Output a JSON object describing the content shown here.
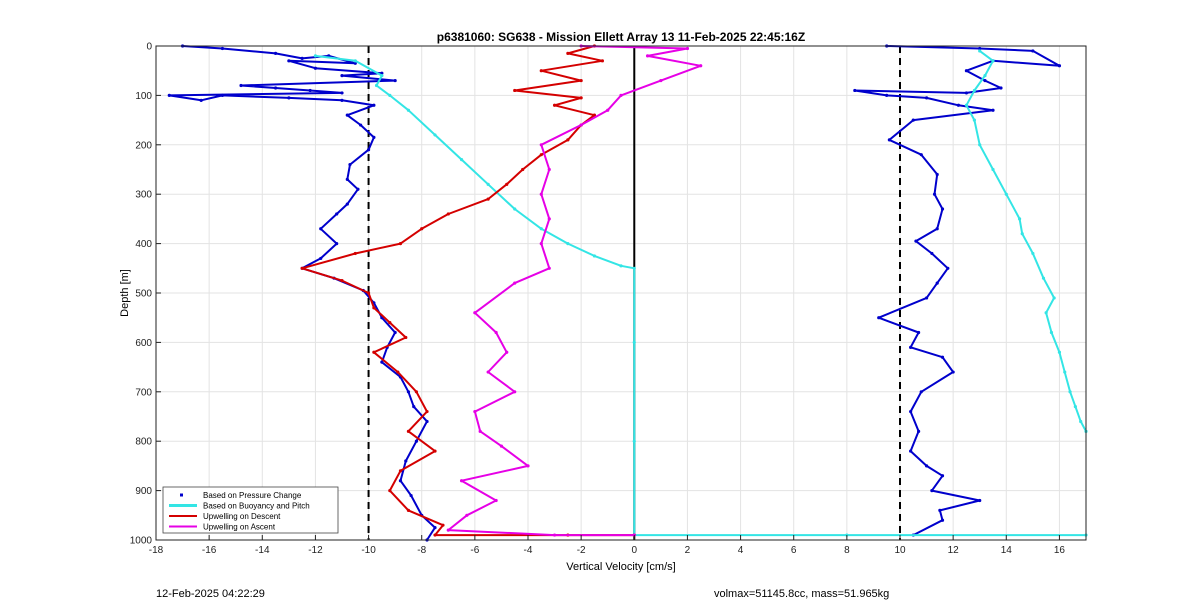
{
  "chart_data": {
    "type": "scatter",
    "title": "p6381060: SG638 - Mission Ellett Array 13 11-Feb-2025 22:45:16Z",
    "xlabel": "Vertical Velocity [cm/s]",
    "ylabel": "Depth [m]",
    "xlim": [
      -18,
      17
    ],
    "ylim": [
      0,
      1000
    ],
    "y_reversed": true,
    "grid": true,
    "xticks": [
      -18,
      -16,
      -14,
      -12,
      -10,
      -8,
      -6,
      -4,
      -2,
      0,
      2,
      4,
      6,
      8,
      10,
      12,
      14,
      16
    ],
    "yticks": [
      0,
      100,
      200,
      300,
      400,
      500,
      600,
      700,
      800,
      900,
      1000
    ],
    "reference_lines": [
      {
        "x": -10,
        "style": "dashed",
        "color": "#000000"
      },
      {
        "x": 0,
        "style": "solid",
        "color": "#000000"
      },
      {
        "x": 10,
        "style": "dashed",
        "color": "#000000"
      }
    ],
    "legend_position": "bottom-left",
    "legend": [
      {
        "label": "Based on Pressure Change",
        "color": "#0000cc",
        "kind": "dot"
      },
      {
        "label": "Based on Buoyancy and Pitch",
        "color": "#33e5e5",
        "kind": "thick-line"
      },
      {
        "label": "Upwelling on Descent",
        "color": "#d40000",
        "kind": "line"
      },
      {
        "label": "Upwelling on Ascent",
        "color": "#e600e6",
        "kind": "line"
      }
    ],
    "series": [
      {
        "name": "Based on Pressure Change (descent)",
        "color": "#0000cc",
        "points": [
          [
            -17,
            0
          ],
          [
            -15.5,
            5
          ],
          [
            -13.5,
            15
          ],
          [
            -12.5,
            25
          ],
          [
            -11.5,
            20
          ],
          [
            -10.5,
            35
          ],
          [
            -13,
            30
          ],
          [
            -12,
            45
          ],
          [
            -9.5,
            55
          ],
          [
            -11,
            60
          ],
          [
            -9,
            70
          ],
          [
            -14.8,
            80
          ],
          [
            -13.5,
            85
          ],
          [
            -12.2,
            90
          ],
          [
            -11,
            95
          ],
          [
            -17.5,
            100
          ],
          [
            -16.3,
            110
          ],
          [
            -15.5,
            100
          ],
          [
            -13,
            105
          ],
          [
            -11,
            110
          ],
          [
            -9.8,
            120
          ],
          [
            -10.8,
            140
          ],
          [
            -10.3,
            160
          ],
          [
            -9.8,
            185
          ],
          [
            -10.0,
            210
          ],
          [
            -10.7,
            240
          ],
          [
            -10.8,
            270
          ],
          [
            -10.4,
            290
          ],
          [
            -10.8,
            320
          ],
          [
            -11.2,
            340
          ],
          [
            -11.8,
            370
          ],
          [
            -11.2,
            400
          ],
          [
            -11.8,
            430
          ],
          [
            -12.5,
            450
          ],
          [
            -11.3,
            470
          ],
          [
            -10.2,
            495
          ],
          [
            -9.8,
            520
          ],
          [
            -9.5,
            550
          ],
          [
            -9.0,
            580
          ],
          [
            -9.3,
            610
          ],
          [
            -9.5,
            640
          ],
          [
            -8.8,
            670
          ],
          [
            -8.5,
            700
          ],
          [
            -8.3,
            730
          ],
          [
            -7.8,
            760
          ],
          [
            -8.2,
            800
          ],
          [
            -8.6,
            840
          ],
          [
            -8.8,
            880
          ],
          [
            -8.4,
            910
          ],
          [
            -8.0,
            950
          ],
          [
            -7.5,
            975
          ],
          [
            -7.8,
            1000
          ]
        ]
      },
      {
        "name": "Based on Pressure Change (ascent)",
        "color": "#0000cc",
        "points": [
          [
            9.5,
            0
          ],
          [
            13,
            5
          ],
          [
            15,
            10
          ],
          [
            16,
            40
          ],
          [
            13.5,
            30
          ],
          [
            12.5,
            50
          ],
          [
            13.2,
            70
          ],
          [
            13.8,
            85
          ],
          [
            12.5,
            95
          ],
          [
            8.3,
            90
          ],
          [
            9.5,
            100
          ],
          [
            11,
            105
          ],
          [
            12.2,
            120
          ],
          [
            13.5,
            130
          ],
          [
            10.5,
            150
          ],
          [
            9.6,
            190
          ],
          [
            10.8,
            220
          ],
          [
            11.4,
            260
          ],
          [
            11.3,
            300
          ],
          [
            11.6,
            330
          ],
          [
            11.4,
            370
          ],
          [
            10.6,
            395
          ],
          [
            11.2,
            420
          ],
          [
            11.8,
            450
          ],
          [
            11.4,
            480
          ],
          [
            11.0,
            510
          ],
          [
            9.2,
            550
          ],
          [
            10.7,
            580
          ],
          [
            10.4,
            610
          ],
          [
            11.6,
            630
          ],
          [
            12.0,
            660
          ],
          [
            10.8,
            700
          ],
          [
            10.4,
            740
          ],
          [
            10.7,
            780
          ],
          [
            10.4,
            820
          ],
          [
            11.0,
            850
          ],
          [
            11.6,
            870
          ],
          [
            11.2,
            900
          ],
          [
            13.0,
            920
          ],
          [
            11.5,
            940
          ],
          [
            11.6,
            960
          ],
          [
            10.5,
            990
          ]
        ]
      },
      {
        "name": "Based on Buoyancy and Pitch (descent)",
        "color": "#33e5e5",
        "points": [
          [
            -12,
            20
          ],
          [
            -10.5,
            30
          ],
          [
            -9.5,
            60
          ],
          [
            -9.7,
            80
          ],
          [
            -9.2,
            100
          ],
          [
            -8.5,
            130
          ],
          [
            -7.5,
            180
          ],
          [
            -6.5,
            230
          ],
          [
            -5.5,
            280
          ],
          [
            -4.5,
            330
          ],
          [
            -3.5,
            370
          ],
          [
            -2.5,
            400
          ],
          [
            -1.5,
            425
          ],
          [
            -0.5,
            445
          ],
          [
            0,
            450
          ],
          [
            0,
            600
          ],
          [
            0,
            800
          ],
          [
            0,
            990
          ],
          [
            8,
            990
          ],
          [
            17,
            990
          ]
        ]
      },
      {
        "name": "Based on Buoyancy and Pitch (ascent)",
        "color": "#33e5e5",
        "points": [
          [
            13,
            10
          ],
          [
            13.5,
            30
          ],
          [
            13.2,
            60
          ],
          [
            12.8,
            90
          ],
          [
            12.5,
            120
          ],
          [
            12.8,
            150
          ],
          [
            13.0,
            200
          ],
          [
            13.5,
            250
          ],
          [
            14.0,
            300
          ],
          [
            14.5,
            350
          ],
          [
            14.6,
            380
          ],
          [
            15.0,
            420
          ],
          [
            15.4,
            470
          ],
          [
            15.8,
            510
          ],
          [
            15.5,
            540
          ],
          [
            15.7,
            580
          ],
          [
            16.0,
            620
          ],
          [
            16.2,
            660
          ],
          [
            16.4,
            700
          ],
          [
            16.6,
            730
          ],
          [
            16.8,
            760
          ],
          [
            17,
            780
          ]
        ]
      },
      {
        "name": "Upwelling on Descent",
        "color": "#d40000",
        "points": [
          [
            -1.5,
            0
          ],
          [
            -2.5,
            15
          ],
          [
            -1.2,
            30
          ],
          [
            -3.5,
            50
          ],
          [
            -2.0,
            70
          ],
          [
            -4.5,
            90
          ],
          [
            -2.0,
            105
          ],
          [
            -3.0,
            120
          ],
          [
            -1.5,
            140
          ],
          [
            -2.0,
            160
          ],
          [
            -2.5,
            190
          ],
          [
            -3.5,
            220
          ],
          [
            -4.2,
            250
          ],
          [
            -4.8,
            280
          ],
          [
            -5.5,
            310
          ],
          [
            -7.0,
            340
          ],
          [
            -8.0,
            370
          ],
          [
            -8.8,
            400
          ],
          [
            -10.5,
            420
          ],
          [
            -12.5,
            450
          ],
          [
            -11.0,
            475
          ],
          [
            -10.0,
            500
          ],
          [
            -9.8,
            530
          ],
          [
            -9.2,
            560
          ],
          [
            -8.6,
            590
          ],
          [
            -9.8,
            620
          ],
          [
            -8.9,
            660
          ],
          [
            -8.2,
            700
          ],
          [
            -7.8,
            740
          ],
          [
            -8.5,
            780
          ],
          [
            -7.5,
            820
          ],
          [
            -8.8,
            860
          ],
          [
            -9.2,
            900
          ],
          [
            -8.5,
            940
          ],
          [
            -7.2,
            970
          ],
          [
            -7.5,
            990
          ],
          [
            -2.5,
            990
          ],
          [
            0,
            990
          ]
        ]
      },
      {
        "name": "Upwelling on Ascent",
        "color": "#e600e6",
        "points": [
          [
            -2,
            0
          ],
          [
            2,
            5
          ],
          [
            0.5,
            20
          ],
          [
            2.5,
            40
          ],
          [
            1.0,
            70
          ],
          [
            -0.5,
            100
          ],
          [
            -1.0,
            130
          ],
          [
            -2.0,
            160
          ],
          [
            -3.5,
            200
          ],
          [
            -3.2,
            250
          ],
          [
            -3.5,
            300
          ],
          [
            -3.2,
            350
          ],
          [
            -3.5,
            400
          ],
          [
            -3.2,
            450
          ],
          [
            -4.5,
            480
          ],
          [
            -6.0,
            540
          ],
          [
            -5.2,
            580
          ],
          [
            -4.8,
            620
          ],
          [
            -5.5,
            660
          ],
          [
            -4.5,
            700
          ],
          [
            -6.0,
            740
          ],
          [
            -5.8,
            780
          ],
          [
            -5.0,
            810
          ],
          [
            -4.0,
            850
          ],
          [
            -6.5,
            880
          ],
          [
            -5.2,
            920
          ],
          [
            -6.3,
            950
          ],
          [
            -7.0,
            980
          ],
          [
            -3.0,
            990
          ],
          [
            0,
            990
          ]
        ]
      }
    ]
  },
  "footer": {
    "left": "12-Feb-2025 04:22:29",
    "right": "volmax=51145.8cc, mass=51.965kg"
  }
}
